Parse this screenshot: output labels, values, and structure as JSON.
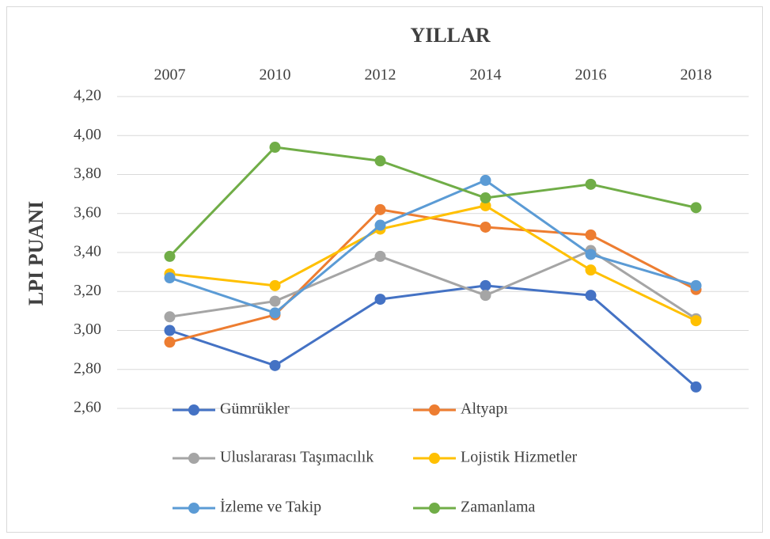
{
  "chart_data": {
    "type": "line",
    "title": "YILLAR",
    "y_label": "LPI PUANI",
    "categories": [
      "2007",
      "2010",
      "2012",
      "2014",
      "2016",
      "2018"
    ],
    "series": [
      {
        "name": "Gümrükler",
        "color": "#4472c4",
        "values": [
          3.0,
          2.82,
          3.16,
          3.23,
          3.18,
          2.71
        ]
      },
      {
        "name": "Altyapı",
        "color": "#ed7d31",
        "values": [
          2.94,
          3.08,
          3.62,
          3.53,
          3.49,
          3.21
        ]
      },
      {
        "name": "Uluslararası Taşımacılık",
        "color": "#a5a5a5",
        "values": [
          3.07,
          3.15,
          3.38,
          3.18,
          3.41,
          3.06
        ]
      },
      {
        "name": "Lojistik Hizmetler",
        "color": "#ffc000",
        "values": [
          3.29,
          3.23,
          3.52,
          3.64,
          3.31,
          3.05
        ]
      },
      {
        "name": "İzleme ve Takip",
        "color": "#5b9bd5",
        "values": [
          3.27,
          3.09,
          3.54,
          3.77,
          3.39,
          3.23
        ]
      },
      {
        "name": "Zamanlama",
        "color": "#70ad47",
        "values": [
          3.38,
          3.94,
          3.87,
          3.68,
          3.75,
          3.63
        ]
      }
    ],
    "ylim": [
      2.6,
      4.2
    ],
    "yticks": [
      {
        "value": 2.6,
        "label": "2,60"
      },
      {
        "value": 2.8,
        "label": "2,80"
      },
      {
        "value": 3.0,
        "label": "3,00"
      },
      {
        "value": 3.2,
        "label": "3,20"
      },
      {
        "value": 3.4,
        "label": "3,40"
      },
      {
        "value": 3.6,
        "label": "3,60"
      },
      {
        "value": 3.8,
        "label": "3,80"
      },
      {
        "value": 4.0,
        "label": "4,00"
      },
      {
        "value": 4.2,
        "label": "4,20"
      }
    ],
    "grid": true
  }
}
